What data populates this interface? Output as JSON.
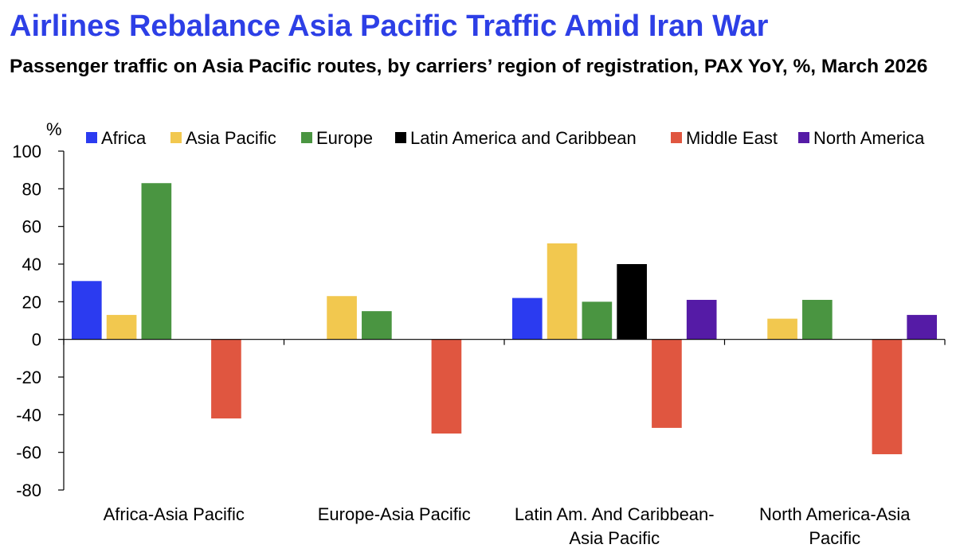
{
  "title": "Airlines Rebalance Asia Pacific Traffic Amid Iran War",
  "subtitle": "Passenger traffic on Asia Pacific routes, by carriers’ region of registration, PAX YoY, %, March 2026",
  "chart_data": {
    "type": "bar",
    "unit_label": "%",
    "ylim": [
      -80,
      100
    ],
    "yticks": [
      100,
      80,
      60,
      40,
      20,
      0,
      -20,
      -40,
      -60,
      -80
    ],
    "grid": false,
    "legend_position": "top",
    "categories": [
      [
        "Africa-Asia Pacific"
      ],
      [
        "Europe-Asia Pacific"
      ],
      [
        "Latin Am. And Caribbean-",
        "Asia Pacific"
      ],
      [
        "North America-Asia",
        "Pacific"
      ]
    ],
    "series": [
      {
        "name": "Africa",
        "color": "#2b3bf0",
        "values": [
          31,
          null,
          22,
          null
        ]
      },
      {
        "name": "Asia Pacific",
        "color": "#f2c84f",
        "values": [
          13,
          23,
          51,
          11
        ]
      },
      {
        "name": "Europe",
        "color": "#4a9541",
        "values": [
          83,
          15,
          20,
          21
        ]
      },
      {
        "name": "Latin America and Caribbean",
        "color": "#000000",
        "values": [
          null,
          null,
          40,
          null
        ]
      },
      {
        "name": "Middle East",
        "color": "#e05640",
        "values": [
          -42,
          -50,
          -47,
          -61
        ]
      },
      {
        "name": "North America",
        "color": "#551ba6",
        "values": [
          null,
          null,
          21,
          13
        ]
      }
    ]
  }
}
